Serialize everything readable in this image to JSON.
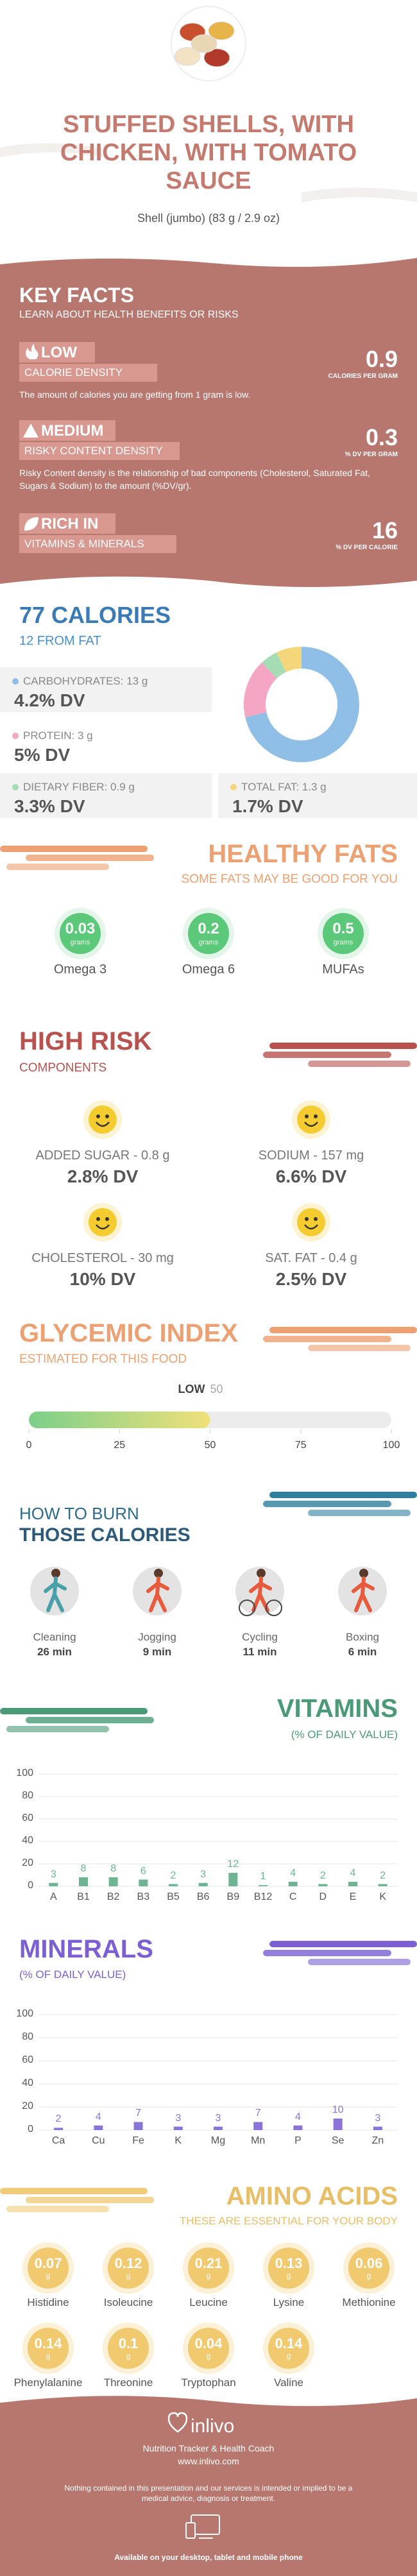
{
  "header": {
    "title": "STUFFED SHELLS, WITH CHICKEN, WITH TOMATO SAUCE",
    "serving": "Shell (jumbo) (83 g / 2.9 oz)"
  },
  "key_facts": {
    "title": "KEY FACTS",
    "subtitle": "LEARN ABOUT HEALTH BENEFITS OR RISKS",
    "items": [
      {
        "level": "LOW",
        "label": "CALORIE DENSITY",
        "value": 0.9,
        "unit": "CALORIES PER GRAM",
        "description": "The amount of calories you are getting from 1 gram is low."
      },
      {
        "level": "MEDIUM",
        "label": "RISKY CONTENT DENSITY",
        "value": 0.3,
        "unit": "% DV PER GRAM",
        "description": "Risky Content density is the relationship of bad components (Cholesterol, Saturated Fat, Sugars & Sodium) to the amount (%DV/gr)."
      },
      {
        "level": "RICH IN",
        "label": "VITAMINS & MINERALS",
        "value": 16,
        "unit": "% DV PER CALORIE"
      }
    ]
  },
  "calories": {
    "title": "77 CALORIES",
    "subtitle": "12 FROM FAT",
    "nutrients": [
      {
        "label": "CARBOHYDRATES: 13 g",
        "grams": 13,
        "dv": "4.2% DV",
        "color": "#8fbfe6"
      },
      {
        "label": "PROTEIN: 3 g",
        "grams": 3,
        "dv": "5% DV",
        "color": "#f4a6c4"
      },
      {
        "label": "DIETARY FIBER: 0.9 g",
        "grams": 0.9,
        "dv": "3.3% DV",
        "color": "#a6dcb4"
      },
      {
        "label": "TOTAL FAT: 1.3 g",
        "grams": 1.3,
        "dv": "1.7% DV",
        "color": "#f5d67a"
      }
    ]
  },
  "healthy_fats": {
    "title": "HEALTHY FATS",
    "subtitle": "SOME FATS MAY BE GOOD FOR YOU",
    "unit": "grams",
    "items": [
      {
        "name": "Omega 3",
        "value": 0.03
      },
      {
        "name": "Omega 6",
        "value": 0.2
      },
      {
        "name": "MUFAs",
        "value": 0.5
      }
    ]
  },
  "high_risk": {
    "title": "HIGH RISK",
    "subtitle": "COMPONENTS",
    "items": [
      {
        "label": "ADDED SUGAR - 0.8 g",
        "dv": "2.8% DV"
      },
      {
        "label": "SODIUM - 157 mg",
        "dv": "6.6% DV"
      },
      {
        "label": "CHOLESTEROL - 30 mg",
        "dv": "10% DV"
      },
      {
        "label": "SAT. FAT - 0.4 g",
        "dv": "2.5% DV"
      }
    ]
  },
  "glycemic_index": {
    "title": "GLYCEMIC INDEX",
    "subtitle": "ESTIMATED FOR THIS FOOD",
    "level": "LOW",
    "value": 50,
    "xlim": [
      0,
      100
    ],
    "xticks": [
      0,
      25,
      50,
      75,
      100
    ]
  },
  "burn": {
    "title_1": "HOW TO BURN",
    "title_2": "THOSE CALORIES",
    "activities": [
      {
        "name": "Cleaning",
        "time": "26 min"
      },
      {
        "name": "Jogging",
        "time": "9 min"
      },
      {
        "name": "Cycling",
        "time": "11 min"
      },
      {
        "name": "Boxing",
        "time": "6 min"
      }
    ]
  },
  "chart_data": [
    {
      "type": "bar",
      "title": "VITAMINS",
      "subtitle": "(% OF DAILY VALUE)",
      "categories": [
        "A",
        "B1",
        "B2",
        "B3",
        "B5",
        "B6",
        "B9",
        "B12",
        "C",
        "D",
        "E",
        "K"
      ],
      "values": [
        3,
        8,
        8,
        6,
        2,
        3,
        12,
        1,
        4,
        2,
        4,
        2
      ],
      "color": "#6db592",
      "ylim": [
        0,
        100
      ],
      "yticks": [
        0,
        20,
        40,
        60,
        80,
        100
      ],
      "grid": true
    },
    {
      "type": "bar",
      "title": "MINERALS",
      "subtitle": "(% OF DAILY VALUE)",
      "categories": [
        "Ca",
        "Cu",
        "Fe",
        "K",
        "Mg",
        "Mn",
        "P",
        "Se",
        "Zn"
      ],
      "values": [
        2,
        4,
        7,
        3,
        3,
        7,
        4,
        10,
        3
      ],
      "color": "#8b74d8",
      "ylim": [
        0,
        100
      ],
      "yticks": [
        0,
        20,
        40,
        60,
        80,
        100
      ],
      "grid": true
    }
  ],
  "amino_acids": {
    "title": "AMINO ACIDS",
    "subtitle": "THESE ARE ESSENTIAL FOR YOUR BODY",
    "unit": "g",
    "items": [
      {
        "name": "Histidine",
        "value": 0.07
      },
      {
        "name": "Isoleucine",
        "value": 0.12
      },
      {
        "name": "Leucine",
        "value": 0.21
      },
      {
        "name": "Lysine",
        "value": 0.13
      },
      {
        "name": "Methionine",
        "value": 0.06
      },
      {
        "name": "Phenylalanine",
        "value": 0.14
      },
      {
        "name": "Threonine",
        "value": 0.1
      },
      {
        "name": "Tryptophan",
        "value": 0.04
      },
      {
        "name": "Valine",
        "value": 0.14
      }
    ]
  },
  "footer": {
    "brand": "inlivo",
    "tagline": "Nutrition Tracker & Health Coach",
    "url": "www.inlivo.com",
    "disclaimer": "Nothing contained in this presentation and our services is intended or implied to be a medical advice, diagnosis or treatment.",
    "availability": "Available on your desktop, tablet and mobile phone"
  }
}
